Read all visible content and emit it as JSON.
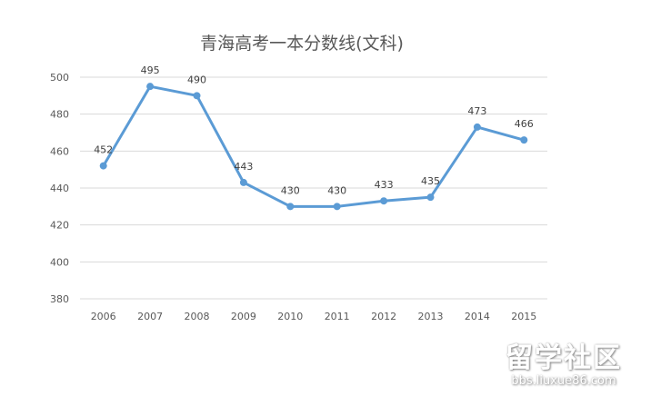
{
  "chart_data": {
    "type": "line",
    "title": "青海高考一本分数线(文科)",
    "categories": [
      "2006",
      "2007",
      "2008",
      "2009",
      "2010",
      "2011",
      "2012",
      "2013",
      "2014",
      "2015"
    ],
    "values": [
      452,
      495,
      490,
      443,
      430,
      430,
      433,
      435,
      473,
      466
    ],
    "data_labels": [
      "452",
      "495",
      "490",
      "443",
      "430",
      "430",
      "433",
      "435",
      "473",
      "466"
    ],
    "ylim": [
      380,
      500
    ],
    "yticks": [
      "380",
      "400",
      "420",
      "440",
      "460",
      "480",
      "500"
    ],
    "grid": true,
    "legend": "none",
    "line_color": "#5b9bd5",
    "xlabel": "",
    "ylabel": ""
  },
  "watermark": {
    "line1": "留学社区",
    "line2": "bbs.liuxue86.com"
  }
}
